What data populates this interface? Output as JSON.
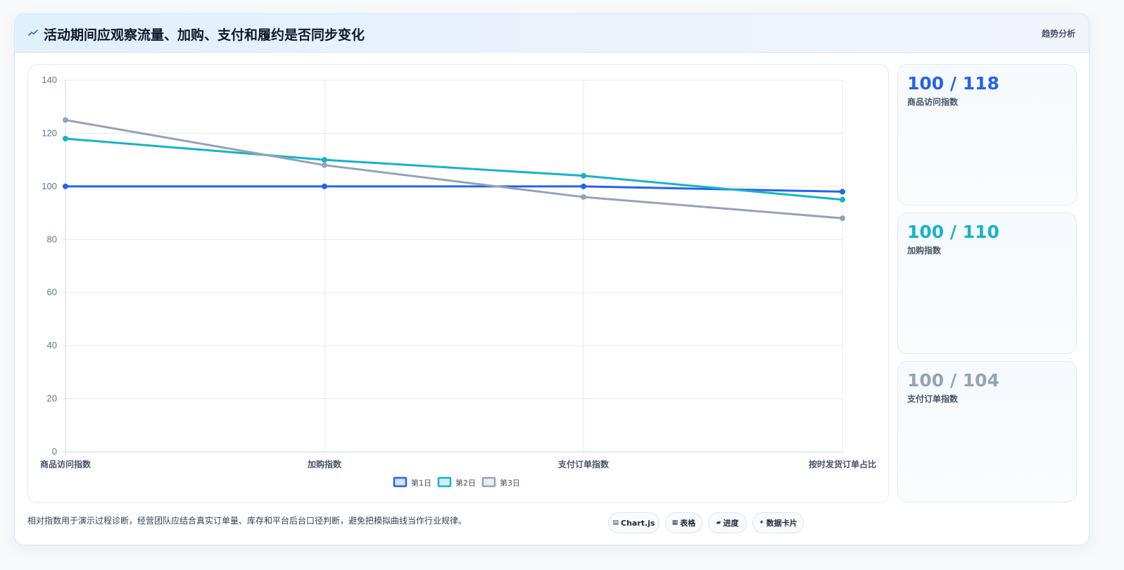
{
  "header": {
    "icon": "trend-icon",
    "title": "活动期间应观察流量、加购、支付和履约是否同步变化",
    "badge": "趋势分析"
  },
  "chart_data": {
    "type": "line",
    "categories": [
      "商品访问指数",
      "加购指数",
      "支付订单指数",
      "按时发货订单占比"
    ],
    "series": [
      {
        "name": "第1日",
        "color": "#2563eb",
        "values": [
          100,
          100,
          100,
          98
        ]
      },
      {
        "name": "第2日",
        "color": "#16b3c8",
        "values": [
          118,
          110,
          104,
          95
        ]
      },
      {
        "name": "第3日",
        "color": "#94a3b8",
        "values": [
          125,
          108,
          96,
          88
        ]
      }
    ],
    "yticks": [
      "0",
      "20",
      "40",
      "60",
      "80",
      "100",
      "120",
      "140"
    ],
    "ylim": [
      0,
      140
    ],
    "grid": true,
    "legend": "bottom"
  },
  "stats": [
    {
      "value": "100 / 118",
      "label": "商品访问指数",
      "color": "#2563eb"
    },
    {
      "value": "100 / 110",
      "label": "加购指数",
      "color": "#16b3c8"
    },
    {
      "value": "100 / 104",
      "label": "支付订单指数",
      "color": "#94a3b8"
    }
  ],
  "footnote": "相对指数用于演示过程诊断，经营团队应结合真实订单量、库存和平台后台口径判断，避免把模拟曲线当作行业规律。",
  "chips": [
    {
      "icon": "▤",
      "label": "Chart.js"
    },
    {
      "icon": "▦",
      "label": "表格"
    },
    {
      "icon": "▰",
      "label": "进度"
    },
    {
      "icon": "✦",
      "label": "数据卡片"
    }
  ]
}
